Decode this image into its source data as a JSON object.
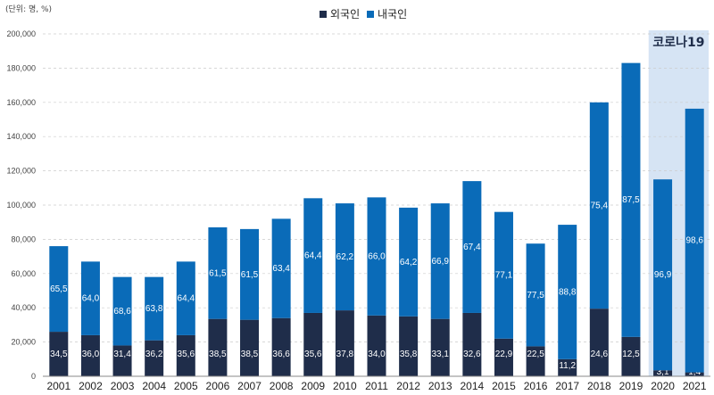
{
  "chart_data": {
    "type": "bar",
    "stacked": true,
    "unit_label": "(단위: 명, %)",
    "legend_position": "top-center",
    "ylim": [
      0,
      200000
    ],
    "y_ticks": [
      "0",
      "20,000",
      "40,000",
      "60,000",
      "80,000",
      "100,000",
      "120,000",
      "140,000",
      "160,000",
      "180,000",
      "200,000"
    ],
    "categories": [
      "2001",
      "2002",
      "2003",
      "2004",
      "2005",
      "2006",
      "2007",
      "2008",
      "2009",
      "2010",
      "2011",
      "2012",
      "2013",
      "2014",
      "2015",
      "2016",
      "2017",
      "2018",
      "2019",
      "2020",
      "2021"
    ],
    "series": [
      {
        "name": "외국인",
        "color": "#1f2d4a",
        "values": [
          26000,
          24000,
          18000,
          21000,
          24000,
          33500,
          33000,
          34000,
          37000,
          38500,
          35500,
          35000,
          33500,
          37000,
          22000,
          17500,
          10000,
          39500,
          23000,
          3500,
          2300
        ],
        "pct_labels": [
          "34,5",
          "36,0",
          "31,4",
          "36,2",
          "35,6",
          "38,5",
          "38,5",
          "36,6",
          "35,6",
          "37,8",
          "34,0",
          "35,8",
          "33,1",
          "32,6",
          "22,9",
          "22,5",
          "11,2",
          "24,6",
          "12,5",
          "3,1",
          "1,4"
        ]
      },
      {
        "name": "내국인",
        "color": "#0a6bb8",
        "values": [
          50000,
          43000,
          40000,
          37000,
          43000,
          53500,
          53000,
          58000,
          67000,
          62500,
          69000,
          63500,
          67500,
          77000,
          74000,
          60000,
          78500,
          120500,
          160000,
          111500,
          154000
        ],
        "pct_labels": [
          "65,5",
          "64,0",
          "68,6",
          "63,8",
          "64,4",
          "61,5",
          "61,5",
          "63,4",
          "64,4",
          "62,2",
          "66,0",
          "64,2",
          "66,9",
          "67,4",
          "77,1",
          "77,5",
          "88,8",
          "75,4",
          "87,5",
          "96,9",
          "98,6"
        ]
      }
    ],
    "annotation": {
      "text": "코로나19",
      "years": [
        "2020",
        "2021"
      ],
      "color": "#d6e4f4"
    }
  }
}
